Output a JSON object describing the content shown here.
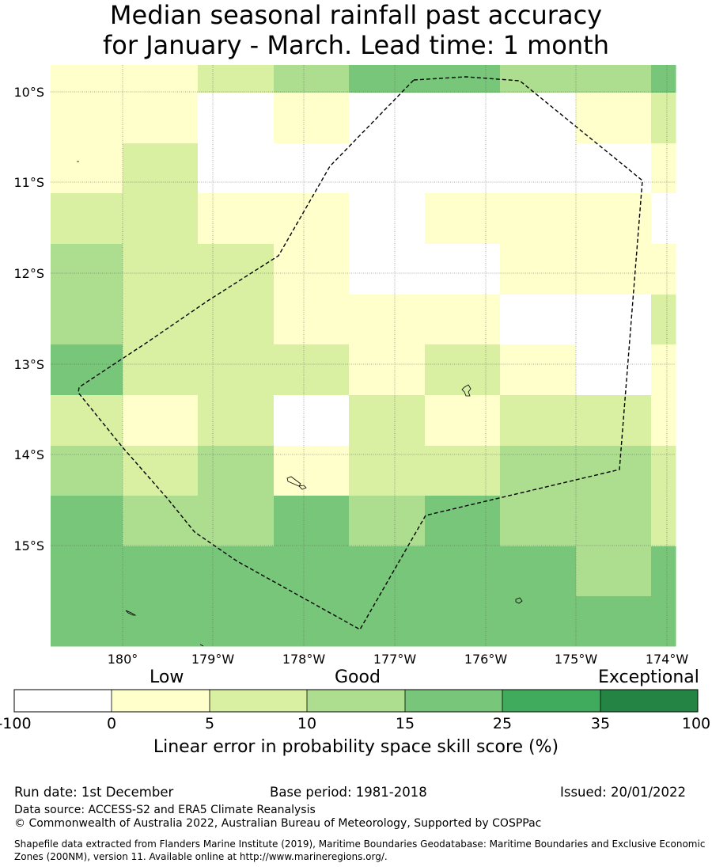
{
  "title_line1": "Median seasonal rainfall past accuracy",
  "title_line2": "for January - March. Lead time: 1 month",
  "map": {
    "lon_labels": [
      "180°",
      "179°W",
      "178°W",
      "177°W",
      "176°W",
      "175°W",
      "174°W"
    ],
    "lat_labels": [
      "10°S",
      "11°S",
      "12°S",
      "13°S",
      "14°S",
      "15°S"
    ],
    "grid_rows": [
      [
        1,
        1,
        2,
        3,
        4,
        4,
        3,
        3,
        4
      ],
      [
        1,
        1,
        0,
        1,
        0,
        0,
        0,
        1,
        2
      ],
      [
        1,
        2,
        0,
        0,
        0,
        0,
        0,
        0,
        1
      ],
      [
        2,
        2,
        1,
        1,
        0,
        1,
        1,
        1,
        0
      ],
      [
        3,
        2,
        2,
        1,
        0,
        0,
        1,
        1,
        1
      ],
      [
        3,
        2,
        2,
        1,
        1,
        1,
        0,
        0,
        2
      ],
      [
        4,
        2,
        2,
        2,
        1,
        2,
        1,
        0,
        1
      ],
      [
        2,
        1,
        2,
        0,
        2,
        1,
        2,
        2,
        1
      ],
      [
        3,
        2,
        3,
        1,
        2,
        2,
        3,
        3,
        2
      ],
      [
        4,
        3,
        3,
        4,
        3,
        4,
        3,
        3,
        2
      ],
      [
        4,
        4,
        4,
        4,
        4,
        4,
        4,
        3,
        4
      ],
      [
        4,
        4,
        4,
        4,
        4,
        4,
        4,
        4,
        4
      ]
    ],
    "cell_colors": [
      "#ffffff",
      "#ffffcc",
      "#d9f0a3",
      "#addd8e",
      "#78c679",
      "#41ab5d",
      "#238443"
    ],
    "boundary_color": "#000000"
  },
  "colorbar": {
    "words": [
      "Low",
      "Good",
      "Exceptional"
    ],
    "ticks": [
      "-100",
      "0",
      "5",
      "10",
      "15",
      "25",
      "35",
      "100"
    ],
    "colors": [
      "#ffffff",
      "#ffffcc",
      "#d9f0a3",
      "#addd8e",
      "#78c679",
      "#41ab5d",
      "#238443"
    ],
    "axis_title": "Linear error in probability space skill score (%)"
  },
  "footer": {
    "run_date": "Run date: 1st December",
    "base_period": "Base period: 1981-2018",
    "issued": "Issued: 20/01/2022",
    "data_source": "Data source: ACCESS-S2 and ERA5 Climate Reanalysis",
    "copyright": "© Commonwealth of Australia 2022, Australian Bureau of Meteorology, Supported by COSPPac",
    "shapefile": "Shapefile data extracted from Flanders Marine Institute (2019), Maritime Boundaries Geodatabase: Maritime Boundaries and Exclusive Economic Zones (200NM), version 11. Available online at http://www.marineregions.org/."
  }
}
